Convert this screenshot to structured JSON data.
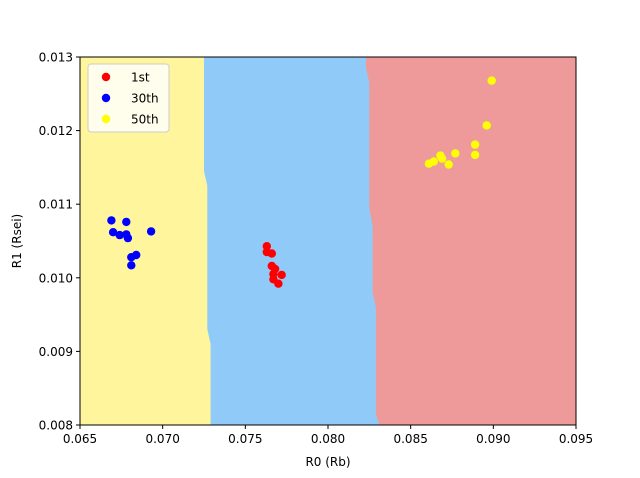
{
  "chart_data": {
    "type": "scatter",
    "title": "",
    "xlabel": "R0 (Rb)",
    "ylabel": "R1 (Rsei)",
    "xlim": [
      0.065,
      0.095
    ],
    "ylim": [
      0.008,
      0.013
    ],
    "xticks": [
      "0.065",
      "0.070",
      "0.075",
      "0.080",
      "0.085",
      "0.090",
      "0.095"
    ],
    "yticks": [
      "0.008",
      "0.009",
      "0.010",
      "0.011",
      "0.012",
      "0.013"
    ],
    "grid": false,
    "legend_position": "top-left",
    "decision_regions": [
      {
        "class": "50th",
        "color": "#fff59d",
        "boundary_right": [
          [
            0.0725,
            0.013
          ],
          [
            0.0725,
            0.01145
          ],
          [
            0.0727,
            0.01125
          ],
          [
            0.0727,
            0.0093
          ],
          [
            0.0729,
            0.0091
          ],
          [
            0.0729,
            0.008
          ]
        ]
      },
      {
        "class": "30th",
        "color": "#90caf9",
        "boundary_right": [
          [
            0.0823,
            0.013
          ],
          [
            0.0823,
            0.01285
          ],
          [
            0.0825,
            0.01265
          ],
          [
            0.0825,
            0.01095
          ],
          [
            0.0827,
            0.0107
          ],
          [
            0.0827,
            0.0098
          ],
          [
            0.0829,
            0.0096
          ],
          [
            0.0829,
            0.00815
          ],
          [
            0.0831,
            0.008
          ]
        ]
      },
      {
        "class": "1st",
        "color": "#ef9a9a"
      }
    ],
    "series": [
      {
        "name": "1st",
        "color": "#ff0000",
        "points": [
          [
            0.0763,
            0.01043
          ],
          [
            0.0763,
            0.01035
          ],
          [
            0.0766,
            0.01033
          ],
          [
            0.0766,
            0.01016
          ],
          [
            0.0768,
            0.01012
          ],
          [
            0.0767,
            0.01005
          ],
          [
            0.0772,
            0.01004
          ],
          [
            0.0767,
            0.00998
          ],
          [
            0.077,
            0.00992
          ]
        ]
      },
      {
        "name": "30th",
        "color": "#0000ff",
        "points": [
          [
            0.0669,
            0.01078
          ],
          [
            0.0678,
            0.01076
          ],
          [
            0.0693,
            0.01063
          ],
          [
            0.067,
            0.01062
          ],
          [
            0.0674,
            0.01058
          ],
          [
            0.0678,
            0.01059
          ],
          [
            0.0679,
            0.01054
          ],
          [
            0.0684,
            0.01031
          ],
          [
            0.0681,
            0.01028
          ],
          [
            0.0681,
            0.01017
          ]
        ]
      },
      {
        "name": "50th",
        "color": "#ffff00",
        "points": [
          [
            0.0899,
            0.01268
          ],
          [
            0.0896,
            0.01207
          ],
          [
            0.0889,
            0.01181
          ],
          [
            0.0877,
            0.01169
          ],
          [
            0.0889,
            0.01167
          ],
          [
            0.0868,
            0.01166
          ],
          [
            0.0869,
            0.01162
          ],
          [
            0.0864,
            0.01158
          ],
          [
            0.0861,
            0.01155
          ],
          [
            0.0873,
            0.01154
          ]
        ]
      }
    ]
  }
}
